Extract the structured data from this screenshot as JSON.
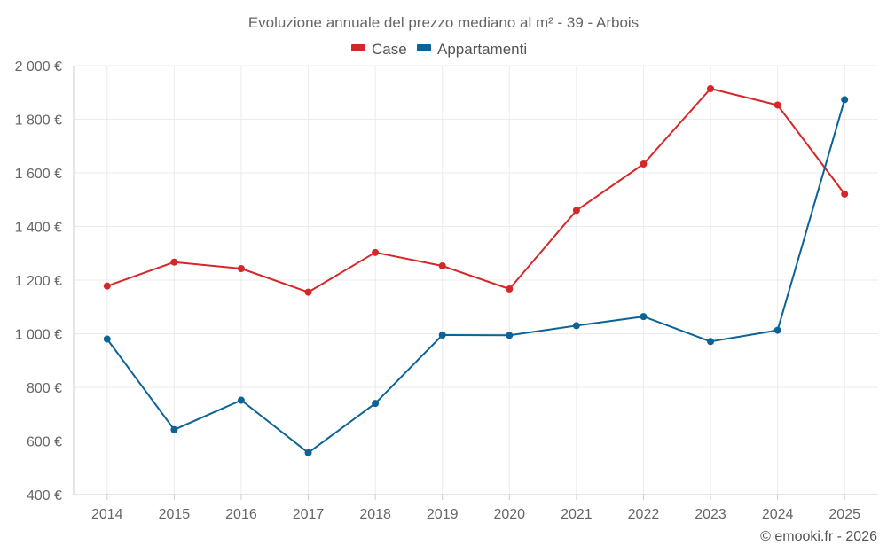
{
  "chart_data": {
    "type": "line",
    "title": "Evoluzione annuale del prezzo mediano al m² - 39 - Arbois",
    "categories": [
      "2014",
      "2015",
      "2016",
      "2017",
      "2018",
      "2019",
      "2020",
      "2021",
      "2022",
      "2023",
      "2024",
      "2025"
    ],
    "series": [
      {
        "name": "Case",
        "color": "#d62728",
        "values": [
          1178,
          1267,
          1243,
          1155,
          1303,
          1253,
          1167,
          1460,
          1633,
          1914,
          1853,
          1521
        ]
      },
      {
        "name": "Appartamenti",
        "color": "#0c6395",
        "values": [
          980,
          642,
          752,
          556,
          740,
          995,
          994,
          1030,
          1064,
          971,
          1013,
          1873
        ]
      }
    ],
    "ylim": [
      400,
      2000
    ],
    "yticks": [
      400,
      600,
      800,
      1000,
      1200,
      1400,
      1600,
      1800,
      2000
    ],
    "ytick_labels": [
      "400 €",
      "600 €",
      "800 €",
      "1 000 €",
      "1 200 €",
      "1 400 €",
      "1 600 €",
      "1 800 €",
      "2 000 €"
    ],
    "xlabel": "",
    "ylabel": "",
    "grid": true,
    "legend_position": "top-center"
  },
  "credit": "© emooki.fr - 2026"
}
